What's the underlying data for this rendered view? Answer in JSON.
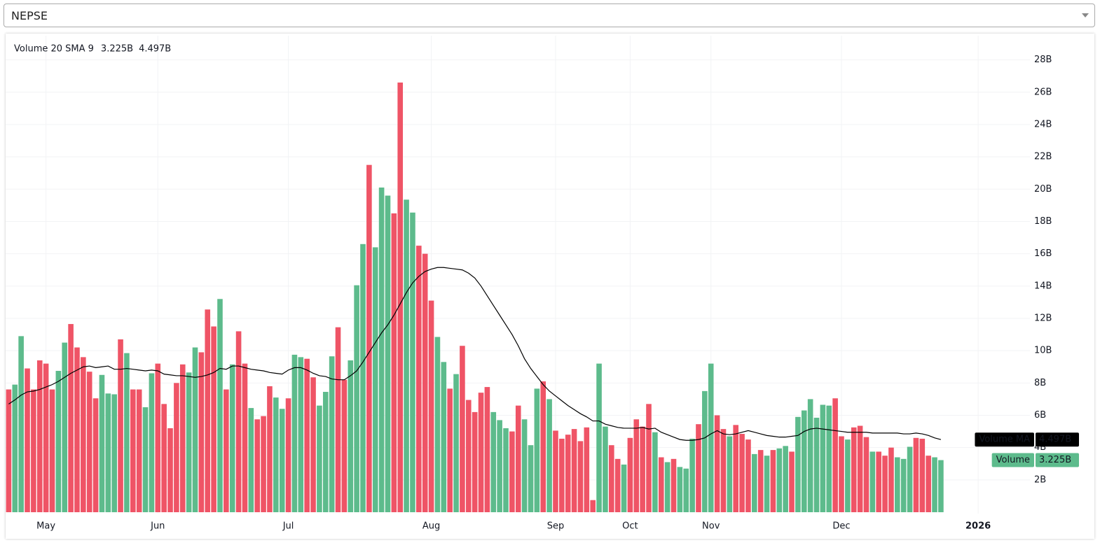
{
  "selector": {
    "value": "NEPSE"
  },
  "chart_data": {
    "type": "bar",
    "legend_title": "Volume 20 SMA 9",
    "categories": [
      null,
      null,
      null,
      null,
      null,
      null,
      "May",
      null,
      null,
      null,
      null,
      null,
      null,
      null,
      null,
      null,
      null,
      null,
      null,
      null,
      null,
      null,
      null,
      null,
      "Jun",
      null,
      null,
      null,
      null,
      null,
      null,
      null,
      null,
      null,
      null,
      null,
      null,
      null,
      null,
      null,
      null,
      null,
      null,
      null,
      null,
      "Jul",
      null,
      null,
      null,
      null,
      null,
      null,
      null,
      null,
      null,
      null,
      null,
      null,
      null,
      null,
      null,
      null,
      null,
      null,
      null,
      null,
      null,
      null,
      "Aug",
      null,
      null,
      null,
      null,
      null,
      null,
      null,
      null,
      null,
      null,
      null,
      null,
      null,
      null,
      null,
      null,
      null,
      null,
      null,
      "Sep",
      null,
      null,
      null,
      null,
      null,
      null,
      null,
      null,
      null,
      null,
      null,
      "Oct",
      null,
      null,
      null,
      null,
      null,
      null,
      null,
      null,
      null,
      null,
      null,
      null,
      "Nov",
      null,
      null,
      null,
      null,
      null,
      null,
      null,
      null,
      null,
      null,
      null,
      null,
      null,
      null,
      null,
      null,
      null,
      null,
      null,
      null,
      "Dec",
      null,
      null,
      null,
      null,
      null,
      null,
      null,
      null,
      null,
      null,
      null,
      null,
      null,
      null,
      null,
      null,
      null,
      null,
      null,
      null,
      null,
      "2026"
    ],
    "series": [
      {
        "name": "Volume",
        "type": "bar",
        "last_value_label": "3.225B",
        "values": [
          7.6,
          7.9,
          10.9,
          8.9,
          7.6,
          9.4,
          9.2,
          7.6,
          8.75,
          10.5,
          11.65,
          10.2,
          9.6,
          8.7,
          7.05,
          8.5,
          7.35,
          7.3,
          10.7,
          9.85,
          7.6,
          7.6,
          6.5,
          8.6,
          9.2,
          6.7,
          5.2,
          8.0,
          9.15,
          8.65,
          10.2,
          9.9,
          12.55,
          11.5,
          13.2,
          7.6,
          9.15,
          11.2,
          9.2,
          6.45,
          5.75,
          5.95,
          7.8,
          7.1,
          6.4,
          7.05,
          9.75,
          9.6,
          9.5,
          8.35,
          6.6,
          7.45,
          9.65,
          11.45,
          8.2,
          9.4,
          14.05,
          16.6,
          21.5,
          16.4,
          20.1,
          19.6,
          18.5,
          26.6,
          19.35,
          18.55,
          16.5,
          16.0,
          13.1,
          10.85,
          9.3,
          7.65,
          8.55,
          10.3,
          6.95,
          6.2,
          7.4,
          7.75,
          6.2,
          5.7,
          5.2,
          5.0,
          6.6,
          5.75,
          4.15,
          7.65,
          8.1,
          7.0,
          5.05,
          4.55,
          4.8,
          5.15,
          4.4,
          5.25,
          0.75,
          9.2,
          5.3,
          4.15,
          3.3,
          2.95,
          4.6,
          5.75,
          5.3,
          6.7,
          4.95,
          3.4,
          3.1,
          3.3,
          2.8,
          2.7,
          4.55,
          5.45,
          7.5,
          9.2,
          6.0,
          5.15,
          4.7,
          5.4,
          4.85,
          4.5,
          3.6,
          3.85,
          3.5,
          3.85,
          3.95,
          4.1,
          3.75,
          5.9,
          6.3,
          7.0,
          5.85,
          6.65,
          6.6,
          7.05,
          4.7,
          4.5,
          5.25,
          5.35,
          4.65,
          3.75,
          3.75,
          3.5,
          4.0,
          3.4,
          3.3,
          4.05,
          4.6,
          4.55,
          3.5,
          3.4,
          3.225,
          null,
          null,
          null,
          null,
          null,
          null
        ],
        "colors": [
          "#ef5466",
          "#5dbb8c",
          "#5dbb8c",
          "#ef5466",
          "#ef5466",
          "#ef5466",
          "#ef5466",
          "#ef5466",
          "#5dbb8c",
          "#5dbb8c",
          "#ef5466",
          "#ef5466",
          "#ef5466",
          "#ef5466",
          "#ef5466",
          "#5dbb8c",
          "#5dbb8c",
          "#5dbb8c",
          "#ef5466",
          "#5dbb8c",
          "#ef5466",
          "#ef5466",
          "#5dbb8c",
          "#5dbb8c",
          "#ef5466",
          "#ef5466",
          "#ef5466",
          "#ef5466",
          "#ef5466",
          "#5dbb8c",
          "#5dbb8c",
          "#ef5466",
          "#ef5466",
          "#ef5466",
          "#5dbb8c",
          "#ef5466",
          "#5dbb8c",
          "#ef5466",
          "#ef5466",
          "#5dbb8c",
          "#ef5466",
          "#ef5466",
          "#ef5466",
          "#5dbb8c",
          "#5dbb8c",
          "#ef5466",
          "#5dbb8c",
          "#5dbb8c",
          "#ef5466",
          "#ef5466",
          "#5dbb8c",
          "#5dbb8c",
          "#5dbb8c",
          "#ef5466",
          "#ef5466",
          "#5dbb8c",
          "#5dbb8c",
          "#5dbb8c",
          "#ef5466",
          "#5dbb8c",
          "#5dbb8c",
          "#5dbb8c",
          "#ef5466",
          "#ef5466",
          "#5dbb8c",
          "#5dbb8c",
          "#ef5466",
          "#ef5466",
          "#ef5466",
          "#5dbb8c",
          "#5dbb8c",
          "#ef5466",
          "#5dbb8c",
          "#ef5466",
          "#ef5466",
          "#ef5466",
          "#ef5466",
          "#ef5466",
          "#5dbb8c",
          "#5dbb8c",
          "#5dbb8c",
          "#ef5466",
          "#ef5466",
          "#5dbb8c",
          "#5dbb8c",
          "#5dbb8c",
          "#ef5466",
          "#5dbb8c",
          "#ef5466",
          "#ef5466",
          "#ef5466",
          "#ef5466",
          "#ef5466",
          "#ef5466",
          "#ef5466",
          "#5dbb8c",
          "#5dbb8c",
          "#ef5466",
          "#ef5466",
          "#5dbb8c",
          "#ef5466",
          "#ef5466",
          "#ef5466",
          "#ef5466",
          "#5dbb8c",
          "#ef5466",
          "#5dbb8c",
          "#ef5466",
          "#5dbb8c",
          "#5dbb8c",
          "#5dbb8c",
          "#ef5466",
          "#5dbb8c",
          "#5dbb8c",
          "#ef5466",
          "#ef5466",
          "#5dbb8c",
          "#ef5466",
          "#ef5466",
          "#ef5466",
          "#5dbb8c",
          "#ef5466",
          "#5dbb8c",
          "#ef5466",
          "#5dbb8c",
          "#5dbb8c",
          "#ef5466",
          "#5dbb8c",
          "#5dbb8c",
          "#5dbb8c",
          "#5dbb8c",
          "#5dbb8c",
          "#5dbb8c",
          "#ef5466",
          "#ef5466",
          "#5dbb8c",
          "#ef5466",
          "#ef5466",
          "#ef5466",
          "#5dbb8c",
          "#ef5466",
          "#ef5466",
          "#ef5466",
          "#5dbb8c",
          "#5dbb8c",
          "#5dbb8c",
          "#ef5466",
          "#ef5466",
          "#ef5466",
          "#5dbb8c",
          "#5dbb8c",
          null,
          null,
          null,
          null,
          null,
          null
        ]
      },
      {
        "name": "Volume MA",
        "type": "line",
        "color": "#000000",
        "last_value_label": "4.497B",
        "values": [
          6.7,
          6.95,
          7.25,
          7.45,
          7.5,
          7.6,
          7.75,
          7.9,
          8.1,
          8.35,
          8.6,
          8.8,
          9.0,
          9.05,
          8.95,
          9.0,
          9.05,
          8.85,
          8.85,
          8.9,
          8.85,
          8.8,
          8.75,
          8.8,
          8.75,
          8.55,
          8.5,
          8.45,
          8.45,
          8.4,
          8.35,
          8.4,
          8.5,
          8.65,
          8.9,
          8.85,
          9.05,
          9.05,
          8.95,
          8.85,
          8.8,
          8.75,
          8.65,
          8.6,
          8.55,
          8.8,
          8.95,
          8.95,
          8.8,
          8.6,
          8.45,
          8.4,
          8.25,
          8.2,
          8.2,
          8.45,
          8.75,
          9.3,
          9.9,
          10.5,
          11.1,
          11.6,
          12.2,
          12.9,
          13.6,
          14.2,
          14.6,
          14.9,
          15.05,
          15.15,
          15.15,
          15.1,
          15.05,
          15.0,
          14.8,
          14.5,
          14.0,
          13.4,
          12.8,
          12.2,
          11.6,
          11.0,
          10.3,
          9.5,
          8.9,
          8.4,
          7.9,
          7.5,
          7.2,
          6.9,
          6.6,
          6.35,
          6.1,
          5.9,
          5.65,
          5.65,
          5.45,
          5.35,
          5.25,
          5.2,
          5.2,
          5.2,
          5.25,
          5.15,
          5.2,
          4.95,
          4.8,
          4.65,
          4.5,
          4.45,
          4.45,
          4.5,
          4.6,
          4.85,
          5.05,
          4.85,
          4.8,
          4.85,
          4.95,
          5.05,
          4.95,
          4.85,
          4.75,
          4.7,
          4.65,
          4.65,
          4.7,
          4.75,
          5.0,
          5.15,
          5.2,
          5.15,
          5.1,
          5.05,
          5.0,
          4.95,
          4.95,
          4.95,
          4.95,
          4.9,
          4.9,
          4.9,
          4.9,
          4.9,
          4.85,
          4.85,
          4.9,
          4.85,
          4.75,
          4.6,
          4.497,
          null,
          null,
          null,
          null,
          null,
          null
        ]
      }
    ],
    "ylim": [
      0,
      29.5
    ],
    "yticks": [
      {
        "value": 2,
        "label": "2B"
      },
      {
        "value": 4,
        "label": "4B"
      },
      {
        "value": 6,
        "label": "6B"
      },
      {
        "value": 8,
        "label": "8B"
      },
      {
        "value": 10,
        "label": "10B"
      },
      {
        "value": 12,
        "label": "12B"
      },
      {
        "value": 14,
        "label": "14B"
      },
      {
        "value": 16,
        "label": "16B"
      },
      {
        "value": 18,
        "label": "18B"
      },
      {
        "value": 20,
        "label": "20B"
      },
      {
        "value": 22,
        "label": "22B"
      },
      {
        "value": 24,
        "label": "24B"
      },
      {
        "value": 26,
        "label": "26B"
      },
      {
        "value": 28,
        "label": "28B"
      }
    ],
    "grid": true
  }
}
